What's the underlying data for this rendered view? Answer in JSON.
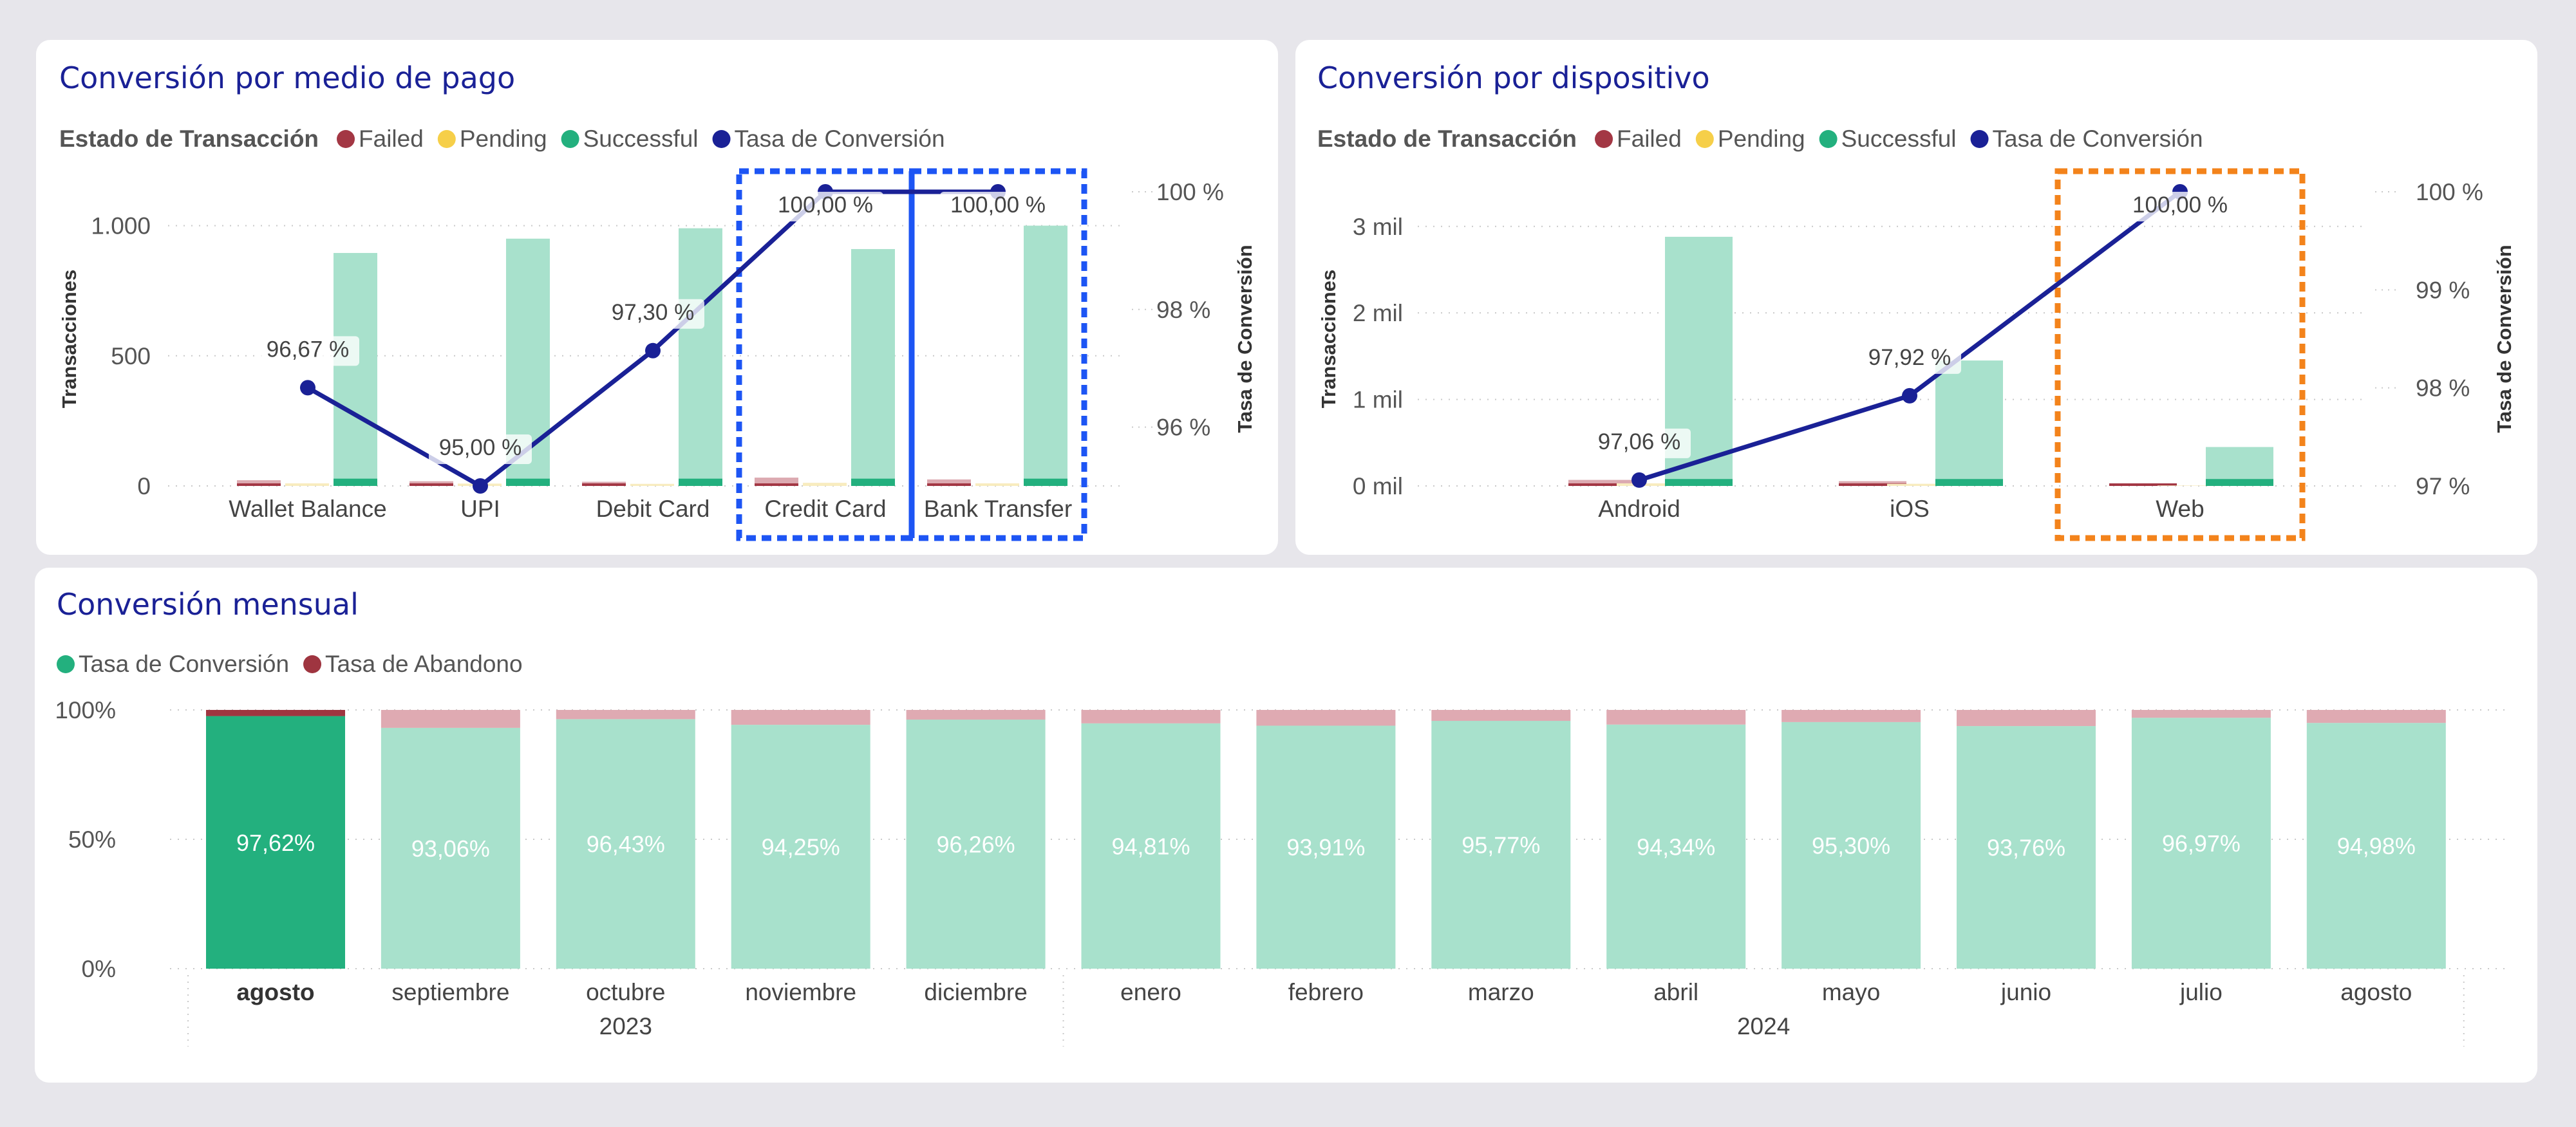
{
  "colors": {
    "failed": "#a33744",
    "failed_light": "#dcaab1",
    "pending": "#f6cf49",
    "pending_light": "#f8ecbf",
    "successful": "#23b07e",
    "successful_light": "#a8e1cc",
    "conversion": "#1a2196",
    "abandon": "#9f3540",
    "abandon_light": "#dfaab2",
    "highlight_blue": "#1d55f4",
    "highlight_orange": "#f3831b",
    "title": "#1a2196"
  },
  "chart_data": [
    {
      "id": "payment",
      "type": "bar",
      "title": "Conversión por medio de pago",
      "legend_title": "Estado de Transacción",
      "legend_placement": "top-left",
      "ylabel": "Transacciones",
      "y2label": "Tasa de Conversión",
      "ylim": [
        0,
        1130
      ],
      "y2lim": [
        95.0,
        100.0
      ],
      "yticks": [
        0,
        500,
        1000
      ],
      "ytick_labels": [
        "0",
        "500",
        "1.000"
      ],
      "y2ticks": [
        96,
        98,
        100
      ],
      "y2tick_labels": [
        "96 %",
        "98 %",
        "100 %"
      ],
      "categories": [
        "Wallet Balance",
        "UPI",
        "Debit Card",
        "Credit Card",
        "Bank Transfer"
      ],
      "series": [
        {
          "name": "Failed",
          "values": [
            22,
            18,
            16,
            32,
            25
          ]
        },
        {
          "name": "Pending",
          "values": [
            10,
            9,
            8,
            12,
            10
          ]
        },
        {
          "name": "Successful",
          "values": [
            895,
            950,
            990,
            910,
            1000
          ]
        },
        {
          "name": "Tasa de Conversión",
          "values": [
            96.67,
            95.0,
            97.3,
            100.0,
            100.0
          ],
          "labels": [
            "96,67 %",
            "95,00 %",
            "97,30 %",
            "100,00 %",
            "100,00 %"
          ]
        }
      ],
      "highlight": [
        "Credit Card",
        "Bank Transfer"
      ],
      "highlighted_bar_stub": 28,
      "grid": true
    },
    {
      "id": "device",
      "type": "bar",
      "title": "Conversión por dispositivo",
      "legend_title": "Estado de Transacción",
      "legend_placement": "top-left",
      "ylabel": "Transacciones",
      "y2label": "Tasa de Conversión",
      "ylim": [
        0,
        3400
      ],
      "y2lim": [
        97.0,
        100.0
      ],
      "yticks": [
        0,
        1000,
        2000,
        3000
      ],
      "ytick_labels": [
        "0 mil",
        "1 mil",
        "2 mil",
        "3 mil"
      ],
      "y2ticks": [
        97,
        98,
        99,
        100
      ],
      "y2tick_labels": [
        "97 %",
        "98 %",
        "99 %",
        "100 %"
      ],
      "categories": [
        "Android",
        "iOS",
        "Web"
      ],
      "series": [
        {
          "name": "Failed",
          "values": [
            70,
            55,
            10
          ]
        },
        {
          "name": "Pending",
          "values": [
            30,
            25,
            5
          ]
        },
        {
          "name": "Successful",
          "values": [
            2880,
            1450,
            450
          ]
        },
        {
          "name": "Tasa de Conversión",
          "values": [
            97.06,
            97.92,
            100.0
          ],
          "labels": [
            "97,06 %",
            "97,92 %",
            "100,00 %"
          ]
        }
      ],
      "highlight": [
        "Web"
      ],
      "highlighted_bar_stub": 80,
      "grid": true
    },
    {
      "id": "monthly",
      "type": "bar",
      "stacked": "100%",
      "title": "Conversión mensual",
      "legend_placement": "top-left",
      "ylim": [
        0,
        100
      ],
      "yticks": [
        0,
        50,
        100
      ],
      "ytick_labels": [
        "0%",
        "50%",
        "100%"
      ],
      "categories": [
        "agosto",
        "septiembre",
        "octubre",
        "noviembre",
        "diciembre",
        "enero",
        "febrero",
        "marzo",
        "abril",
        "mayo",
        "junio",
        "julio",
        "agosto"
      ],
      "years": [
        {
          "label": "2023",
          "from": 0,
          "to": 4
        },
        {
          "label": "2024",
          "from": 5,
          "to": 12
        }
      ],
      "series": [
        {
          "name": "Tasa de Conversión",
          "values": [
            97.62,
            93.06,
            96.43,
            94.25,
            96.26,
            94.81,
            93.91,
            95.77,
            94.34,
            95.3,
            93.76,
            96.97,
            94.98
          ],
          "labels": [
            "97,62%",
            "93,06%",
            "96,43%",
            "94,25%",
            "96,26%",
            "94,81%",
            "93,91%",
            "95,77%",
            "94,34%",
            "95,30%",
            "93,76%",
            "96,97%",
            "94,98%"
          ]
        },
        {
          "name": "Tasa de Abandono",
          "values": [
            2.38,
            6.94,
            3.57,
            5.75,
            3.74,
            5.19,
            6.09,
            4.23,
            5.66,
            4.7,
            6.24,
            3.03,
            5.02
          ]
        }
      ],
      "selected_index": 0,
      "grid": true
    }
  ]
}
